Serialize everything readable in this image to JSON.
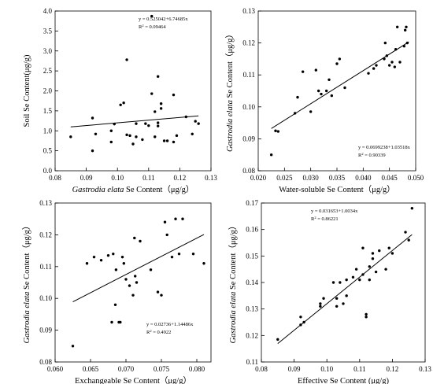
{
  "chart_data": [
    {
      "type": "scatter",
      "title": "",
      "xlabel": "Gastrodia elata Se Content（μg/g）",
      "xlabel_parts": [
        {
          "text": "Gastrodia elata",
          "italic": true
        },
        {
          "text": " Se Content（μg/g）",
          "italic": false
        }
      ],
      "ylabel": "Soil Se Content(μg/g)",
      "ylabel_parts": [
        {
          "text": "Soil Se Content(μg/g)",
          "italic": false
        }
      ],
      "xlim": [
        0.08,
        0.13
      ],
      "ylim": [
        0.0,
        4.0
      ],
      "xticks": [
        0.08,
        0.09,
        0.1,
        0.11,
        0.12,
        0.13
      ],
      "xtick_labels": [
        "0.08",
        "0.09",
        "0.10",
        "0.11",
        "0.12",
        "0.13"
      ],
      "yticks": [
        0.0,
        0.5,
        1.0,
        1.5,
        2.0,
        2.5,
        3.0,
        3.5,
        4.0
      ],
      "ytick_labels": [
        "0.0",
        "0.5",
        "1.0",
        "1.5",
        "2.0",
        "2.5",
        "3.0",
        "3.5",
        "4.0"
      ],
      "grid": false,
      "fit_line": {
        "slope": 6.74685,
        "intercept": 0.525042,
        "x_range": [
          0.085,
          0.126
        ]
      },
      "equation": "y = 0.525042+6.74685x",
      "r2_label": "R",
      "r2_sup": "2",
      "r2_value": " = 0.09464",
      "annotation_position": "top-right",
      "x": [
        0.085,
        0.092,
        0.092,
        0.093,
        0.098,
        0.098,
        0.099,
        0.101,
        0.102,
        0.103,
        0.103,
        0.104,
        0.105,
        0.106,
        0.106,
        0.108,
        0.109,
        0.11,
        0.111,
        0.111,
        0.112,
        0.112,
        0.113,
        0.113,
        0.113,
        0.114,
        0.114,
        0.115,
        0.116,
        0.118,
        0.118,
        0.119,
        0.122,
        0.124,
        0.125,
        0.126
      ],
      "y": [
        0.85,
        0.5,
        1.32,
        0.92,
        1.0,
        0.72,
        1.17,
        1.65,
        1.7,
        2.78,
        0.9,
        0.88,
        0.67,
        1.18,
        0.85,
        0.78,
        1.18,
        1.13,
        3.87,
        1.93,
        0.85,
        1.48,
        1.2,
        2.36,
        1.12,
        1.56,
        1.68,
        0.75,
        0.75,
        1.9,
        0.72,
        0.88,
        1.35,
        0.92,
        1.24,
        1.18
      ]
    },
    {
      "type": "scatter",
      "title": "",
      "xlabel": "Water-soluble Se Content（μg/g）",
      "xlabel_parts": [
        {
          "text": "Water-soluble Se Content（μg/g）",
          "italic": false
        }
      ],
      "ylabel": "Gastrodia elata Se Content（μg/g）",
      "ylabel_parts": [
        {
          "text": "Gastrodia elata",
          "italic": true
        },
        {
          "text": " Se Content（μg/g）",
          "italic": false
        }
      ],
      "xlim": [
        0.02,
        0.05
      ],
      "ylim": [
        0.08,
        0.13
      ],
      "xticks": [
        0.02,
        0.025,
        0.03,
        0.035,
        0.04,
        0.045,
        0.05
      ],
      "xtick_labels": [
        "0.020",
        "0.025",
        "0.030",
        "0.035",
        "0.040",
        "0.045",
        "0.050"
      ],
      "yticks": [
        0.08,
        0.09,
        0.1,
        0.11,
        0.12,
        0.13
      ],
      "ytick_labels": [
        "0.08",
        "0.09",
        "0.10",
        "0.11",
        "0.12",
        "0.13"
      ],
      "grid": false,
      "fit_line": {
        "slope": 1.03518,
        "intercept": 0.0699238,
        "x_range": [
          0.0225,
          0.0487
        ]
      },
      "equation": "y = 0.0699238+1.03518x",
      "r2_label": "R",
      "r2_sup": "2",
      "r2_value": " = 0.90339",
      "annotation_position": "bottom-right",
      "x": [
        0.0225,
        0.0233,
        0.0238,
        0.027,
        0.0275,
        0.0285,
        0.03,
        0.031,
        0.0315,
        0.032,
        0.033,
        0.0335,
        0.034,
        0.035,
        0.0355,
        0.0365,
        0.041,
        0.042,
        0.0425,
        0.044,
        0.0442,
        0.0445,
        0.045,
        0.0455,
        0.046,
        0.0462,
        0.0465,
        0.047,
        0.0478,
        0.048,
        0.0482,
        0.0484
      ],
      "y": [
        0.085,
        0.0925,
        0.0923,
        0.098,
        0.103,
        0.111,
        0.0985,
        0.1115,
        0.105,
        0.104,
        0.105,
        0.1085,
        0.1035,
        0.1135,
        0.115,
        0.106,
        0.1105,
        0.112,
        0.113,
        0.115,
        0.12,
        0.116,
        0.113,
        0.114,
        0.1125,
        0.118,
        0.125,
        0.114,
        0.119,
        0.124,
        0.125,
        0.12
      ]
    },
    {
      "type": "scatter",
      "title": "",
      "xlabel": "Exchangeable Se Content（μg/g）",
      "xlabel_parts": [
        {
          "text": "Exchangeable Se Content（μg/g）",
          "italic": false
        }
      ],
      "ylabel": "Gastrodia elata Se Content（μg/g）",
      "ylabel_parts": [
        {
          "text": "Gastrodia elata",
          "italic": true
        },
        {
          "text": " Se Content（μg/g）",
          "italic": false
        }
      ],
      "xlim": [
        0.06,
        0.082
      ],
      "ylim": [
        0.08,
        0.13
      ],
      "xticks": [
        0.06,
        0.065,
        0.07,
        0.075,
        0.08
      ],
      "xtick_labels": [
        "0.060",
        "0.065",
        "0.070",
        "0.075",
        "0.080"
      ],
      "yticks": [
        0.08,
        0.09,
        0.1,
        0.11,
        0.12,
        0.13
      ],
      "ytick_labels": [
        "0.08",
        "0.09",
        "0.10",
        "0.11",
        "0.12",
        "0.13"
      ],
      "grid": false,
      "fit_line": {
        "slope": 1.14486,
        "intercept": 0.02736,
        "x_range": [
          0.0625,
          0.081
        ]
      },
      "equation": "y = 0.02736+1.14486x",
      "r2_label": "R",
      "r2_sup": "2",
      "r2_value": " = 0.4922",
      "annotation_position": "bottom-right",
      "x": [
        0.0625,
        0.0645,
        0.0655,
        0.0665,
        0.0675,
        0.068,
        0.0682,
        0.0685,
        0.0686,
        0.069,
        0.0692,
        0.0695,
        0.0697,
        0.07,
        0.0705,
        0.071,
        0.0712,
        0.0713,
        0.0715,
        0.072,
        0.0735,
        0.0745,
        0.075,
        0.0755,
        0.0758,
        0.0765,
        0.077,
        0.0775,
        0.078,
        0.0795,
        0.081
      ],
      "y": [
        0.085,
        0.111,
        0.113,
        0.112,
        0.1135,
        0.0925,
        0.114,
        0.098,
        0.109,
        0.0925,
        0.0925,
        0.113,
        0.111,
        0.106,
        0.104,
        0.101,
        0.119,
        0.107,
        0.105,
        0.118,
        0.109,
        0.102,
        0.101,
        0.124,
        0.12,
        0.113,
        0.125,
        0.114,
        0.125,
        0.114,
        0.111
      ]
    },
    {
      "type": "scatter",
      "title": "",
      "xlabel": "Effective Se Content (μg/g)",
      "xlabel_parts": [
        {
          "text": "Effective Se Content (μg/g)",
          "italic": false
        }
      ],
      "ylabel": "Gastrodia elata Se Content（μg/g）",
      "ylabel_parts": [
        {
          "text": "Gastrodia elata",
          "italic": true
        },
        {
          "text": " Se Content（μg/g）",
          "italic": false
        }
      ],
      "xlim": [
        0.08,
        0.13
      ],
      "ylim": [
        0.11,
        0.17
      ],
      "xticks": [
        0.08,
        0.09,
        0.1,
        0.11,
        0.12,
        0.13
      ],
      "xtick_labels": [
        "0.08",
        "0.09",
        "0.10",
        "0.11",
        "0.12",
        "0.13"
      ],
      "yticks": [
        0.11,
        0.12,
        0.13,
        0.14,
        0.15,
        0.16,
        0.17
      ],
      "ytick_labels": [
        "0.11",
        "0.12",
        "0.13",
        "0.14",
        "0.15",
        "0.16",
        "0.17"
      ],
      "grid": false,
      "fit_line": {
        "slope": 1.0034,
        "intercept": 0.031653,
        "x_range": [
          0.085,
          0.126
        ]
      },
      "equation": "y = 0.031653+1.0034x",
      "r2_label": "R",
      "r2_sup": "2",
      "r2_value": " = 0.86221",
      "annotation_position": "top-left",
      "x": [
        0.085,
        0.092,
        0.092,
        0.093,
        0.098,
        0.098,
        0.099,
        0.102,
        0.103,
        0.103,
        0.104,
        0.105,
        0.106,
        0.106,
        0.108,
        0.109,
        0.11,
        0.111,
        0.111,
        0.112,
        0.112,
        0.113,
        0.113,
        0.114,
        0.114,
        0.115,
        0.116,
        0.118,
        0.119,
        0.12,
        0.124,
        0.125,
        0.126
      ],
      "y": [
        0.1185,
        0.127,
        0.124,
        0.125,
        0.131,
        0.132,
        0.134,
        0.14,
        0.131,
        0.134,
        0.14,
        0.132,
        0.135,
        0.141,
        0.142,
        0.145,
        0.141,
        0.143,
        0.153,
        0.128,
        0.127,
        0.141,
        0.146,
        0.151,
        0.149,
        0.144,
        0.152,
        0.145,
        0.153,
        0.151,
        0.159,
        0.156,
        0.168
      ]
    }
  ]
}
